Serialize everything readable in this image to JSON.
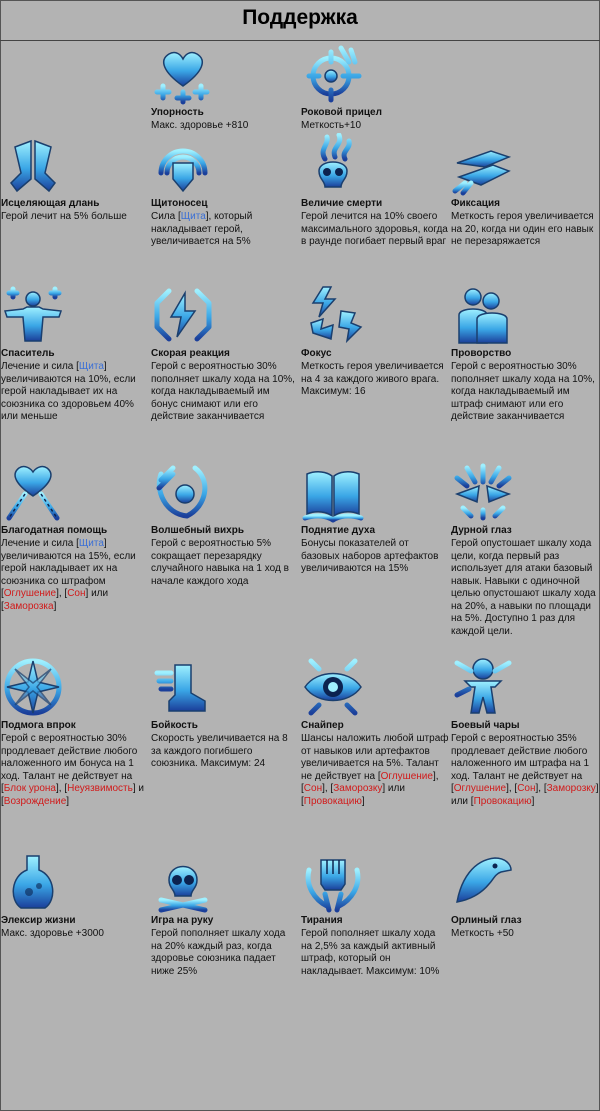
{
  "header": {
    "title": "Поддержка"
  },
  "skills": [
    {
      "name": "Упорность",
      "icon": "heart-plus-icon",
      "desc": [
        {
          "t": "Макс. здоровье +810"
        }
      ]
    },
    {
      "name": "Роковой прицел",
      "icon": "crosshair-icon",
      "desc": [
        {
          "t": "Меткость+10"
        }
      ]
    },
    {
      "name": "Исцеляющая длань",
      "icon": "praying-hands-icon",
      "desc": [
        {
          "t": "Герой лечит на 5% больше"
        }
      ]
    },
    {
      "name": "Щитоносец",
      "icon": "shield-icon",
      "desc": [
        {
          "t": "Сила ["
        },
        {
          "t": "Щита",
          "c": "kw"
        },
        {
          "t": "], который накладывает герой, увеличивается на 5%"
        }
      ]
    },
    {
      "name": "Величие смерти",
      "icon": "flaming-skull-icon",
      "desc": [
        {
          "t": "Герой лечится на 10% своего максимального здоровья, когда в раунде погибает первый враг"
        }
      ]
    },
    {
      "name": "Фиксация",
      "icon": "eyes-focus-icon",
      "desc": [
        {
          "t": "Меткость героя увеличивается на 20, когда ни один его навык не перезаряжается"
        }
      ]
    },
    {
      "name": "Спаситель",
      "icon": "savior-figure-icon",
      "desc": [
        {
          "t": "Лечение и сила ["
        },
        {
          "t": "Щита",
          "c": "kw"
        },
        {
          "t": "] увеличиваются на 10%, если герой накладывает их на союзника со здоровьем 40% или меньше"
        }
      ]
    },
    {
      "name": "Скорая реакция",
      "icon": "lightning-brackets-icon",
      "desc": [
        {
          "t": "Герой с вероятностью 30% пополняет шкалу хода на 10%, когда накладываемый им бонус снимают или его действие заканчивается"
        }
      ]
    },
    {
      "name": "Фокус",
      "icon": "lightning-bolts-icon",
      "desc": [
        {
          "t": "Меткость героя увеличивается на 4 за каждого живого врага. Максимум: 16"
        }
      ]
    },
    {
      "name": "Проворство",
      "icon": "twin-silhouettes-icon",
      "desc": [
        {
          "t": "Герой с вероятностью 30% пополняет шкалу хода на 10%, когда накладываемый им штраф снимают или его действие заканчивается"
        }
      ]
    },
    {
      "name": "Благодатная помощь",
      "icon": "heart-chains-icon",
      "desc": [
        {
          "t": "Лечение и сила ["
        },
        {
          "t": "Щита",
          "c": "kw"
        },
        {
          "t": "] увеличиваются на 15%, если герой накладывает их на союзника со штрафом ["
        },
        {
          "t": "Оглушение",
          "c": "deb"
        },
        {
          "t": "], ["
        },
        {
          "t": "Сон",
          "c": "deb"
        },
        {
          "t": "] или ["
        },
        {
          "t": "Заморозка",
          "c": "deb"
        },
        {
          "t": "]"
        }
      ]
    },
    {
      "name": "Волшебный вихрь",
      "icon": "magic-vortex-icon",
      "desc": [
        {
          "t": "Герой с вероятностью 5% сокращает перезарядку случайного навыка на 1 ход в начале каждого хода"
        }
      ]
    },
    {
      "name": "Поднятие духа",
      "icon": "open-book-icon",
      "desc": [
        {
          "t": "Бонусы показателей от базовых наборов артефактов увеличиваются на 15%"
        }
      ]
    },
    {
      "name": "Дурной глаз",
      "icon": "evil-eyes-icon",
      "desc": [
        {
          "t": "Герой опустошает шкалу хода цели, когда первый раз использует для атаки базовый навык. Навыки с одиночной целью опустошают шкалу хода на 20%, а навыки по площади на 5%. Доступно 1 раз для каждой цели."
        }
      ]
    },
    {
      "name": "Подмога впрок",
      "icon": "compass-star-icon",
      "desc": [
        {
          "t": "Герой с вероятностью 30% продлевает действие любого наложенного им бонуса на 1 ход. Талант не действует на ["
        },
        {
          "t": "Блок урона",
          "c": "deb"
        },
        {
          "t": "], ["
        },
        {
          "t": "Неуязвимость",
          "c": "deb"
        },
        {
          "t": "] и ["
        },
        {
          "t": "Возрождение",
          "c": "deb"
        },
        {
          "t": "]"
        }
      ]
    },
    {
      "name": "Бойкость",
      "icon": "winged-boot-icon",
      "desc": [
        {
          "t": "Скорость увеличивается на 8 за каждого погибшего союзника. Максимум: 24"
        }
      ]
    },
    {
      "name": "Снайпер",
      "icon": "eye-target-icon",
      "desc": [
        {
          "t": "Шансы наложить любой штраф от навыков или артефактов увеличивается на 5%. Талант не действует на ["
        },
        {
          "t": "Оглушение",
          "c": "deb"
        },
        {
          "t": "], ["
        },
        {
          "t": "Сон",
          "c": "deb"
        },
        {
          "t": "], ["
        },
        {
          "t": "Заморозку",
          "c": "deb"
        },
        {
          "t": "] или ["
        },
        {
          "t": "Провокацию",
          "c": "deb"
        },
        {
          "t": "]"
        }
      ]
    },
    {
      "name": "Боевый чары",
      "icon": "voodoo-doll-icon",
      "desc": [
        {
          "t": "Герой с вероятностью 35% продлевает действие любого наложенного им штрафа на 1 ход. Талант не действует на ["
        },
        {
          "t": "Оглушение",
          "c": "deb"
        },
        {
          "t": "], ["
        },
        {
          "t": "Сон",
          "c": "deb"
        },
        {
          "t": "], ["
        },
        {
          "t": "Заморозку",
          "c": "deb"
        },
        {
          "t": "] или ["
        },
        {
          "t": "Провокацию",
          "c": "deb"
        },
        {
          "t": "]"
        }
      ]
    },
    {
      "name": "Элексир жизни",
      "icon": "potion-flask-icon",
      "desc": [
        {
          "t": "Макс. здоровье +3000"
        }
      ]
    },
    {
      "name": "Игра на руку",
      "icon": "skull-crossbones-icon",
      "desc": [
        {
          "t": "Герой пополняет шкалу хода на 20% каждый раз, когда здоровье союзника падает ниже 25%"
        }
      ]
    },
    {
      "name": "Тирания",
      "icon": "raised-fist-icon",
      "desc": [
        {
          "t": "Герой пополняет шкалу хода на 2,5% за каждый активный штраф, который он накладывает. Максимум: 10%"
        }
      ]
    },
    {
      "name": "Орлиный глаз",
      "icon": "eagle-head-icon",
      "desc": [
        {
          "t": "Меткость +50"
        }
      ]
    }
  ]
}
